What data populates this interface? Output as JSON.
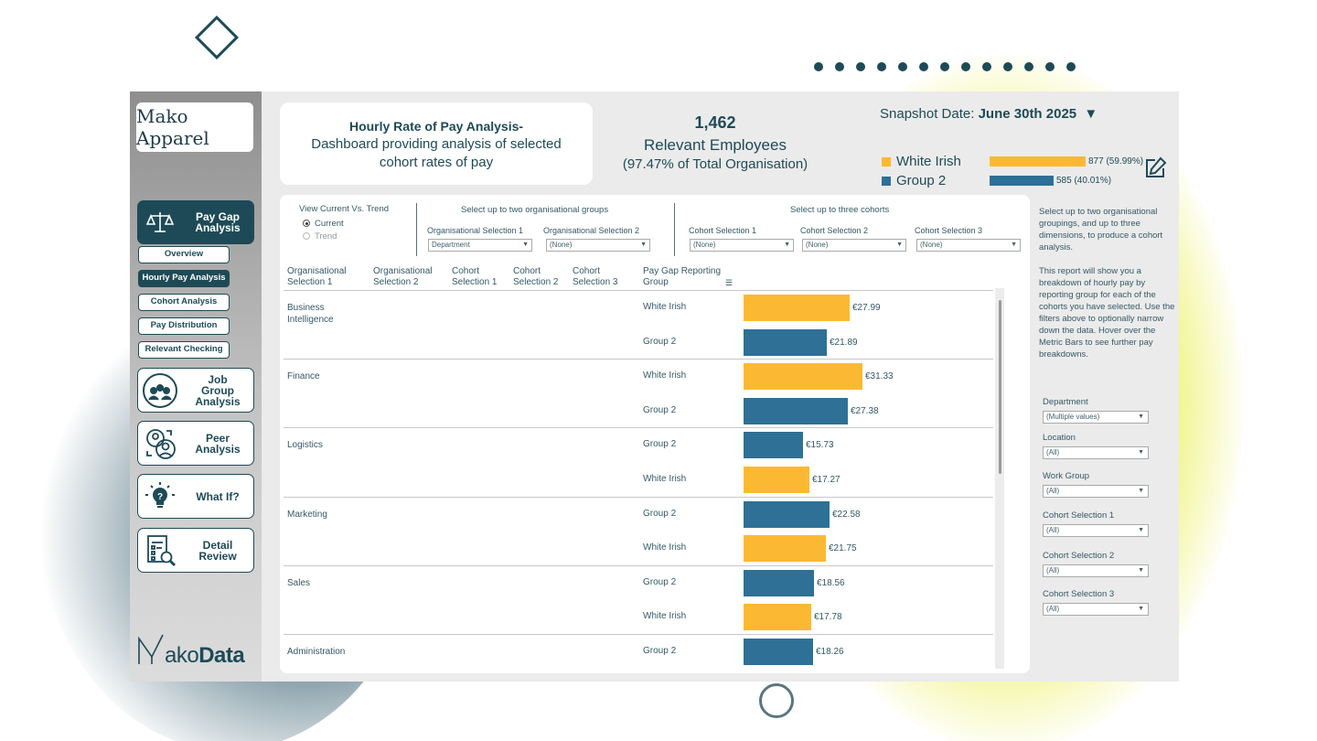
{
  "colors": {
    "white_irish": "#fbb933",
    "group2": "#2e7096",
    "dark": "#1e4a57"
  },
  "logo": "Mako Apparel",
  "brand": {
    "prefix": "ako",
    "suffix": "Data"
  },
  "nav": {
    "pay_gap": "Pay Gap Analysis",
    "sub": [
      "Overview",
      "Hourly Pay Analysis",
      "Cohort Analysis",
      "Pay Distribution",
      "Relevant Checking"
    ],
    "job_group": "Job Group Analysis",
    "peer": "Peer Analysis",
    "whatif": "What If?",
    "detail": "Detail Review"
  },
  "title": {
    "line1": "Hourly Rate of Pay Analysis-",
    "line2": "Dashboard providing analysis of selected cohort rates of pay"
  },
  "kpi": {
    "count": "1,462",
    "label": "Relevant Employees",
    "pct": "(97.47% of Total Organisation)"
  },
  "snapshot": {
    "label": "Snapshot Date:",
    "value": "June 30th 2025",
    "arrow": "▼"
  },
  "legend": [
    {
      "name": "White Irish",
      "value": "877 (59.99%)",
      "share": 0.5999
    },
    {
      "name": "Group 2",
      "value": "585 (40.01%)",
      "share": 0.4001
    }
  ],
  "controls": {
    "view_label": "View Current Vs. Trend",
    "opt_current": "Current",
    "opt_trend": "Trend",
    "org_title": "Select up to two organisational groups",
    "org1_label": "Organisational Selection 1",
    "org1_value": "Department",
    "org2_label": "Organisational Selection 2",
    "org2_value": "(None)",
    "cohort_title": "Select up to three cohorts",
    "c1_label": "Cohort Selection 1",
    "c1_value": "(None)",
    "c2_label": "Cohort Selection 2",
    "c2_value": "(None)",
    "c3_label": "Cohort Selection 3",
    "c3_value": "(None)"
  },
  "columns": [
    "Organisational Selection 1",
    "Organisational Selection 2",
    "Cohort Selection 1",
    "Cohort Selection 2",
    "Cohort Selection 3",
    "Pay Gap Reporting Group"
  ],
  "rows": [
    {
      "dept": "Business Intelligence",
      "group": "White Irish",
      "value": 27.99,
      "label": "€27.99"
    },
    {
      "dept": "",
      "group": "Group 2",
      "value": 21.89,
      "label": "€21.89"
    },
    {
      "dept": "Finance",
      "group": "White Irish",
      "value": 31.33,
      "label": "€31.33"
    },
    {
      "dept": "",
      "group": "Group 2",
      "value": 27.38,
      "label": "€27.38"
    },
    {
      "dept": "Logistics",
      "group": "Group 2",
      "value": 15.73,
      "label": "€15.73"
    },
    {
      "dept": "",
      "group": "White Irish",
      "value": 17.27,
      "label": "€17.27"
    },
    {
      "dept": "Marketing",
      "group": "Group 2",
      "value": 22.58,
      "label": "€22.58"
    },
    {
      "dept": "",
      "group": "White Irish",
      "value": 21.75,
      "label": "€21.75"
    },
    {
      "dept": "Sales",
      "group": "Group 2",
      "value": 18.56,
      "label": "€18.56"
    },
    {
      "dept": "",
      "group": "White Irish",
      "value": 17.78,
      "label": "€17.78"
    },
    {
      "dept": "Administration",
      "group": "Group 2",
      "value": 18.26,
      "label": "€18.26"
    }
  ],
  "help": {
    "p1": "Select up to two organisational groupings, and up to three dimensions, to produce a cohort analysis.",
    "p2": "This report will show you a breakdown of hourly pay by reporting group for each of the cohorts you have selected. Use the filters above to optionally narrow down the data. Hover over the Metric Bars to see further pay breakdowns."
  },
  "filters": [
    {
      "label": "Department",
      "value": "(Multiple values)"
    },
    {
      "label": "Location",
      "value": "(All)"
    },
    {
      "label": "Work Group",
      "value": "(All)"
    },
    {
      "label": "Cohort Selection 1",
      "value": "(All)"
    },
    {
      "label": "Cohort Selection 2",
      "value": "(All)"
    },
    {
      "label": "Cohort Selection 3",
      "value": "(All)"
    }
  ]
}
